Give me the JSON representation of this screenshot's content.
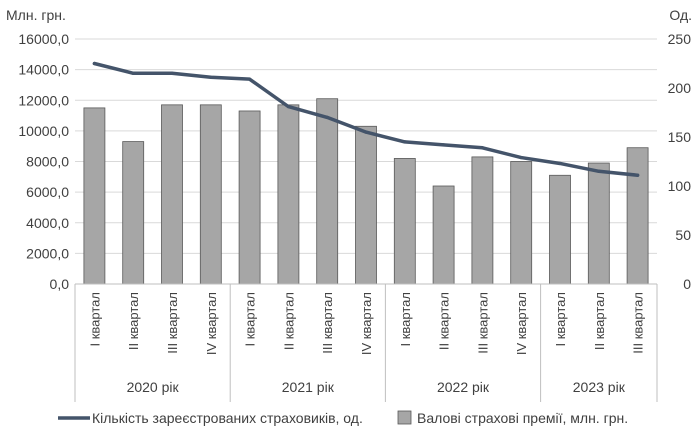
{
  "chart_data": {
    "type": "bar+line",
    "y_left_title": "Млн. грн.",
    "y_right_title": "Од.",
    "y_left_lim": [
      0,
      16000
    ],
    "y_left_ticks": [
      "0,0",
      "2000,0",
      "4000,0",
      "6000,0",
      "8000,0",
      "10000,0",
      "12000,0",
      "14000,0",
      "16000,0"
    ],
    "y_right_lim": [
      0,
      250
    ],
    "y_right_ticks": [
      "0",
      "50",
      "100",
      "150",
      "200",
      "250"
    ],
    "grid": true,
    "legend_position": "bottom",
    "groups": [
      {
        "label": "2020 рік",
        "categories": [
          "I квартал",
          "II квартал",
          "III квартал",
          "IV квартал"
        ]
      },
      {
        "label": "2021 рік",
        "categories": [
          "I квартал",
          "II квартал",
          "III квартал",
          "IV квартал"
        ]
      },
      {
        "label": "2022 рік",
        "categories": [
          "I квартал",
          "II квартал",
          "III квартал",
          "IV квартал"
        ]
      },
      {
        "label": "2023 рік",
        "categories": [
          "I квартал",
          "II квартал",
          "III квартал"
        ]
      }
    ],
    "series": [
      {
        "name": "Валові страхові премії, млн. грн.",
        "type": "bar",
        "axis": "left",
        "color": "#a6a6a6",
        "values": [
          11500,
          9300,
          11700,
          11700,
          11300,
          11700,
          12100,
          10300,
          8200,
          6400,
          8300,
          8000,
          7100,
          7900,
          8900
        ]
      },
      {
        "name": "Кількість зареєстрованих страховиків, од.",
        "type": "line",
        "axis": "right",
        "color": "#44546a",
        "values": [
          225,
          215,
          215,
          211,
          209,
          181,
          170,
          155,
          145,
          142,
          139,
          129,
          123,
          115,
          111
        ]
      }
    ]
  }
}
